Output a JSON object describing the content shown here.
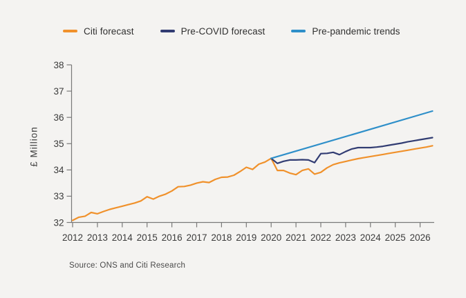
{
  "legend": {
    "items": [
      {
        "label": "Citi forecast"
      },
      {
        "label": "Pre-COVID forecast"
      },
      {
        "label": "Pre-pandemic trends"
      }
    ]
  },
  "footer": {
    "source": "Source: ONS and Citi Research"
  },
  "chart_data": {
    "type": "line",
    "title": "",
    "xlabel": "",
    "ylabel": "£ Million",
    "ylim": [
      32,
      38
    ],
    "yticks": [
      32,
      33,
      34,
      35,
      36,
      37,
      38
    ],
    "xticks": [
      2012,
      2013,
      2014,
      2015,
      2016,
      2017,
      2018,
      2019,
      2020,
      2021,
      2022,
      2023,
      2024,
      2025,
      2026
    ],
    "xlim": [
      2012,
      2026.6
    ],
    "grid": false,
    "legend_position": "top",
    "colors": {
      "background": "#F4F3F1",
      "axis": "#787878",
      "text": "#3B3B3B",
      "citi_orange": "#F0912B",
      "precovid_navy": "#313C72",
      "prepandemic_blue": "#2E8FC9"
    },
    "series": [
      {
        "name": "Citi forecast",
        "color": "#F0912B",
        "x_start": 2012.0,
        "x_step": 0.25,
        "values": [
          32.08,
          32.2,
          32.24,
          32.38,
          32.33,
          32.42,
          32.5,
          32.56,
          32.62,
          32.68,
          32.74,
          32.82,
          32.98,
          32.89,
          33.0,
          33.08,
          33.2,
          33.36,
          33.37,
          33.42,
          33.5,
          33.55,
          33.52,
          33.64,
          33.72,
          33.73,
          33.8,
          33.94,
          34.1,
          34.02,
          34.22,
          34.3,
          34.44,
          33.98,
          33.98,
          33.88,
          33.82,
          33.98,
          34.04,
          33.84,
          33.91,
          34.08,
          34.2,
          34.27,
          34.32,
          34.38,
          34.43,
          34.47,
          34.51,
          34.55,
          34.59,
          34.63,
          34.67,
          34.71,
          34.75,
          34.79,
          34.83,
          34.87,
          34.92
        ]
      },
      {
        "name": "Pre-COVID forecast",
        "color": "#313C72",
        "x_start": 2020.0,
        "x_step": 0.25,
        "values": [
          34.44,
          34.25,
          34.33,
          34.38,
          34.38,
          34.39,
          34.38,
          34.28,
          34.62,
          34.63,
          34.67,
          34.58,
          34.7,
          34.8,
          34.85,
          34.85,
          34.85,
          34.87,
          34.9,
          34.94,
          34.98,
          35.02,
          35.07,
          35.11,
          35.15,
          35.19,
          35.23
        ]
      },
      {
        "name": "Pre-pandemic trends",
        "color": "#2E8FC9",
        "x": [
          2020.0,
          2026.5
        ],
        "values": [
          34.44,
          36.24
        ]
      }
    ]
  }
}
